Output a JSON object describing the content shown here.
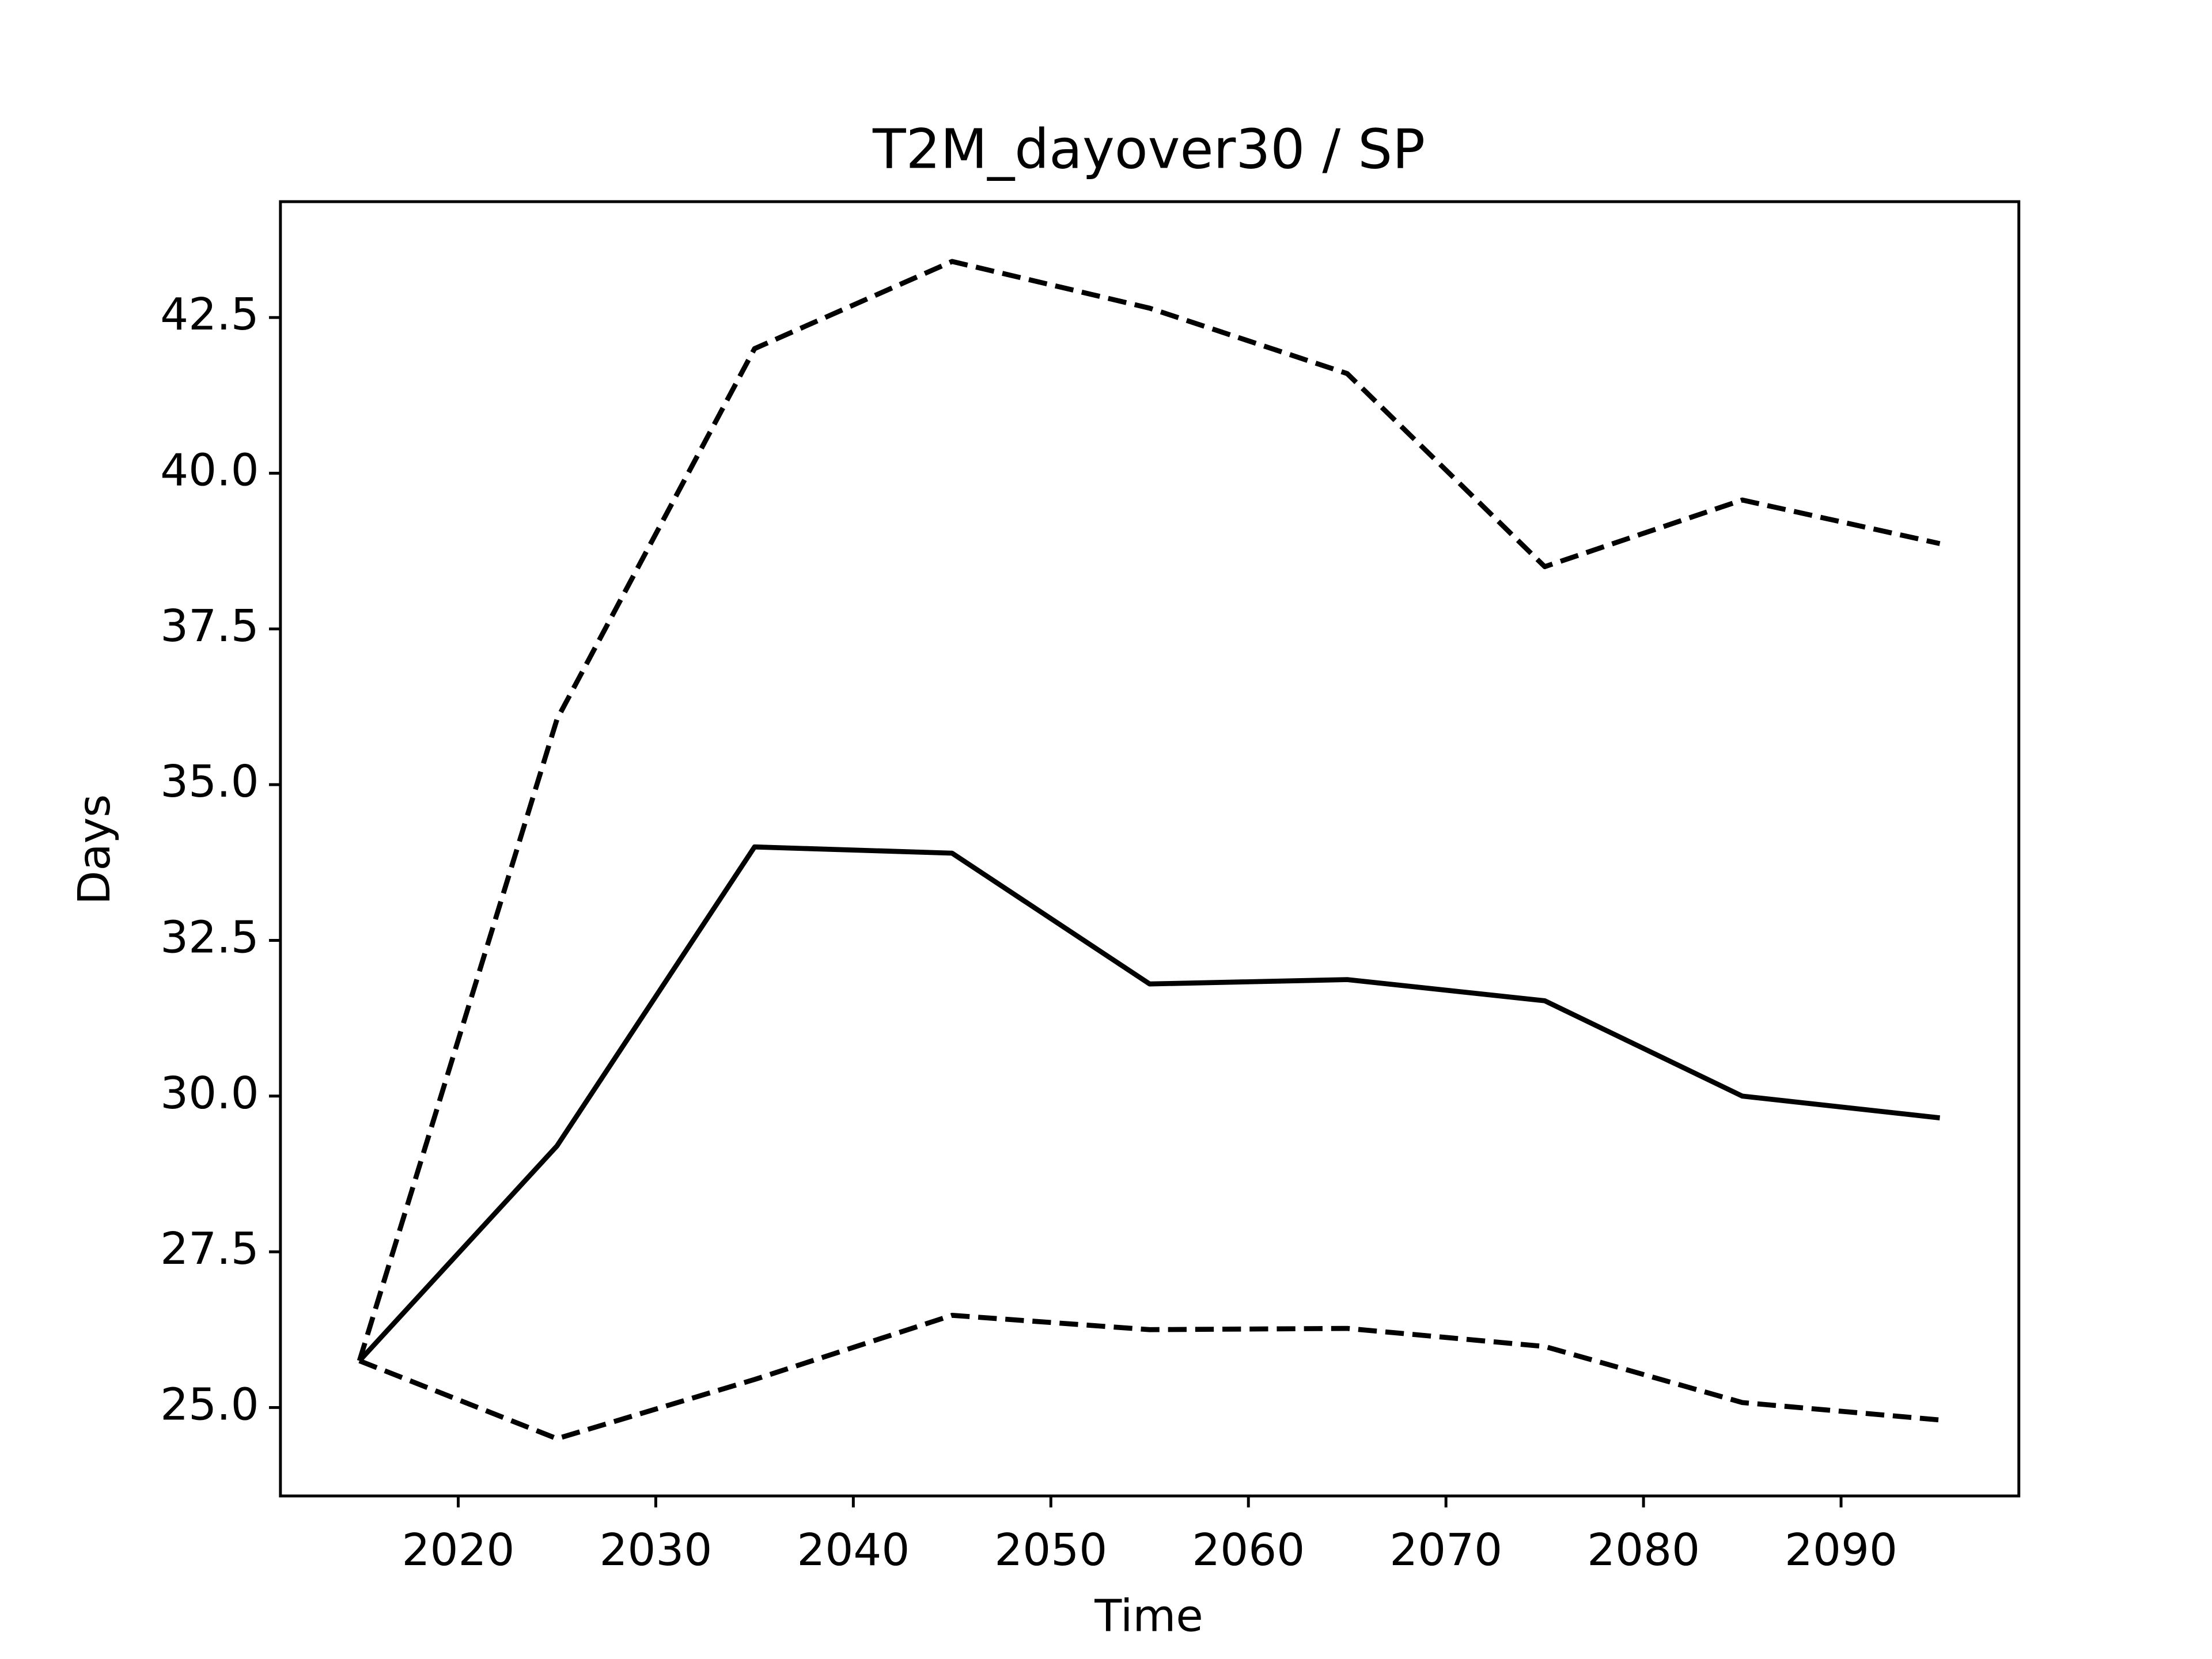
{
  "chart_data": {
    "type": "line",
    "title": "T2M_dayover30 / SP",
    "x_label": "Time",
    "y_label": "Days",
    "x": [
      2015,
      2025,
      2035,
      2045,
      2055,
      2065,
      2075,
      2085,
      2095
    ],
    "series": [
      {
        "color": "#000000",
        "line_style": "solid",
        "values": [
          25.75,
          29.2,
          34.0,
          33.9,
          31.8,
          31.87,
          31.53,
          30.0,
          29.65
        ]
      },
      {
        "color": "#000000",
        "line_style": "dashed",
        "values": [
          25.75,
          36.05,
          42.0,
          43.4,
          42.65,
          41.6,
          38.5,
          39.57,
          38.87
        ]
      },
      {
        "color": "#000000",
        "line_style": "dashed",
        "values": [
          25.75,
          24.5,
          25.45,
          26.48,
          26.25,
          26.27,
          25.98,
          25.08,
          24.8
        ]
      }
    ],
    "xlim": [
      2011,
      2099
    ],
    "ylim": [
      23.58,
      44.36
    ],
    "xticks": [
      2020,
      2030,
      2040,
      2050,
      2060,
      2070,
      2080,
      2090
    ],
    "yticks": [
      {
        "value": 25,
        "label": "25.0"
      },
      {
        "value": 27.5,
        "label": "27.5"
      },
      {
        "value": 30,
        "label": "30.0"
      },
      {
        "value": 32.5,
        "label": "32.5"
      },
      {
        "value": 35,
        "label": "35.0"
      },
      {
        "value": 37.5,
        "label": "37.5"
      },
      {
        "value": 40,
        "label": "40.0"
      },
      {
        "value": 42.5,
        "label": "42.5"
      }
    ],
    "grid": false
  }
}
